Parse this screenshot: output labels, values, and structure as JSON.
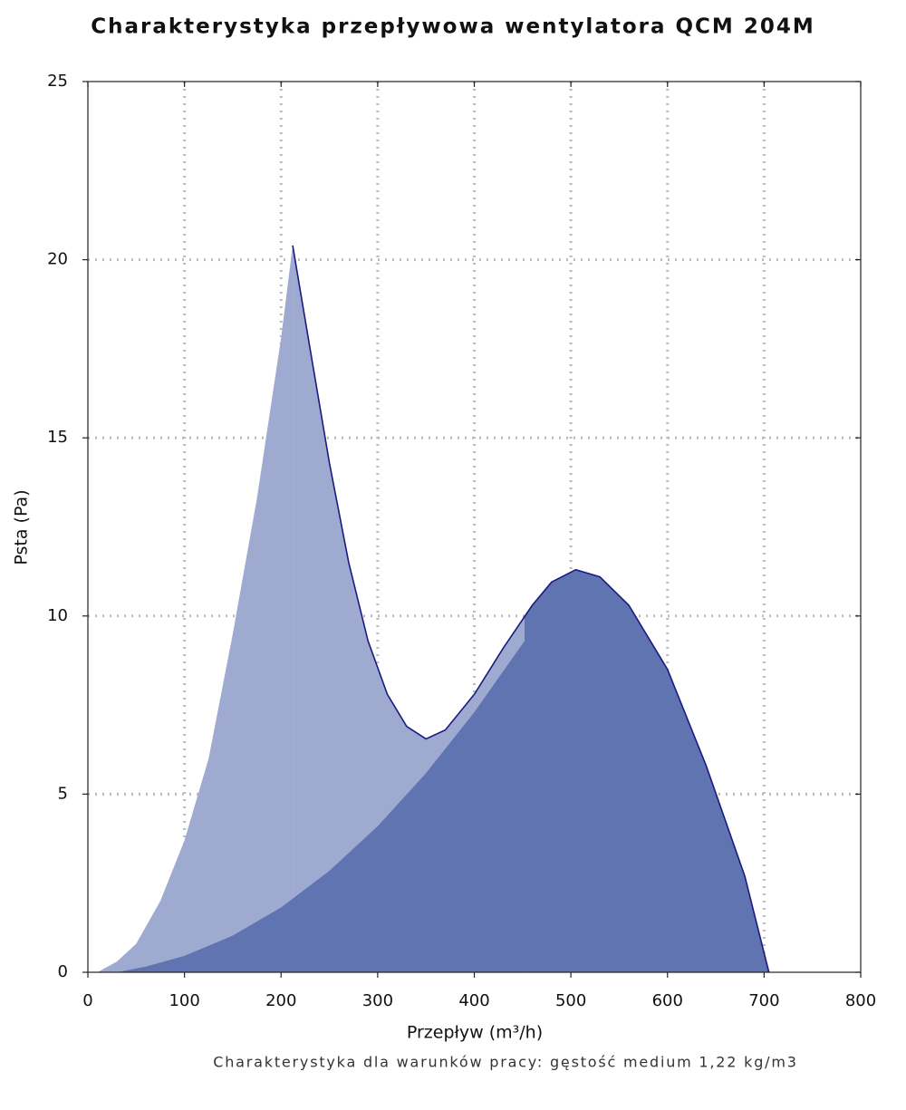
{
  "chart_data": {
    "type": "area",
    "title": "Charakterystyka przepływowa wentylatora QCM 204M",
    "x_label": "Przepływ (m³/h)",
    "y_label": "Psta (Pa)",
    "note": "Charakterystyka dla warunków pracy: gęstość medium 1,22 kg/m3",
    "xlim": [
      0,
      800
    ],
    "ylim": [
      0,
      25
    ],
    "xticks": [
      0,
      100,
      200,
      300,
      400,
      500,
      600,
      700,
      800
    ],
    "yticks": [
      0,
      5,
      10,
      15,
      20,
      25
    ],
    "grid": true,
    "series": [
      {
        "color": "#6174b2",
        "light_color": "#9eaad0",
        "line_color": "#1a1a80",
        "x": [
          212,
          230,
          250,
          270,
          290,
          310,
          330,
          350,
          370,
          400,
          430,
          460,
          480,
          505,
          530,
          560,
          600,
          640,
          680,
          705
        ],
        "values": [
          20.4,
          17.5,
          14.3,
          11.5,
          9.3,
          7.8,
          6.9,
          6.55,
          6.8,
          7.8,
          9.1,
          10.3,
          10.95,
          11.3,
          11.1,
          10.3,
          8.5,
          5.8,
          2.7,
          0
        ]
      },
      {
        "color": "#6174b2",
        "x": [
          30,
          60,
          100,
          150,
          200,
          250,
          300,
          350,
          400,
          452
        ],
        "values": [
          0,
          0.16,
          0.46,
          1.03,
          1.82,
          2.85,
          4.1,
          5.59,
          7.3,
          9.3
        ]
      },
      {
        "color": "#9eaad0",
        "x": [
          10,
          30,
          50,
          75,
          100,
          125,
          150,
          175,
          200,
          212
        ],
        "values": [
          0,
          0.3,
          0.8,
          2,
          3.7,
          6,
          9.5,
          13.3,
          17.8,
          20.4
        ]
      }
    ]
  }
}
